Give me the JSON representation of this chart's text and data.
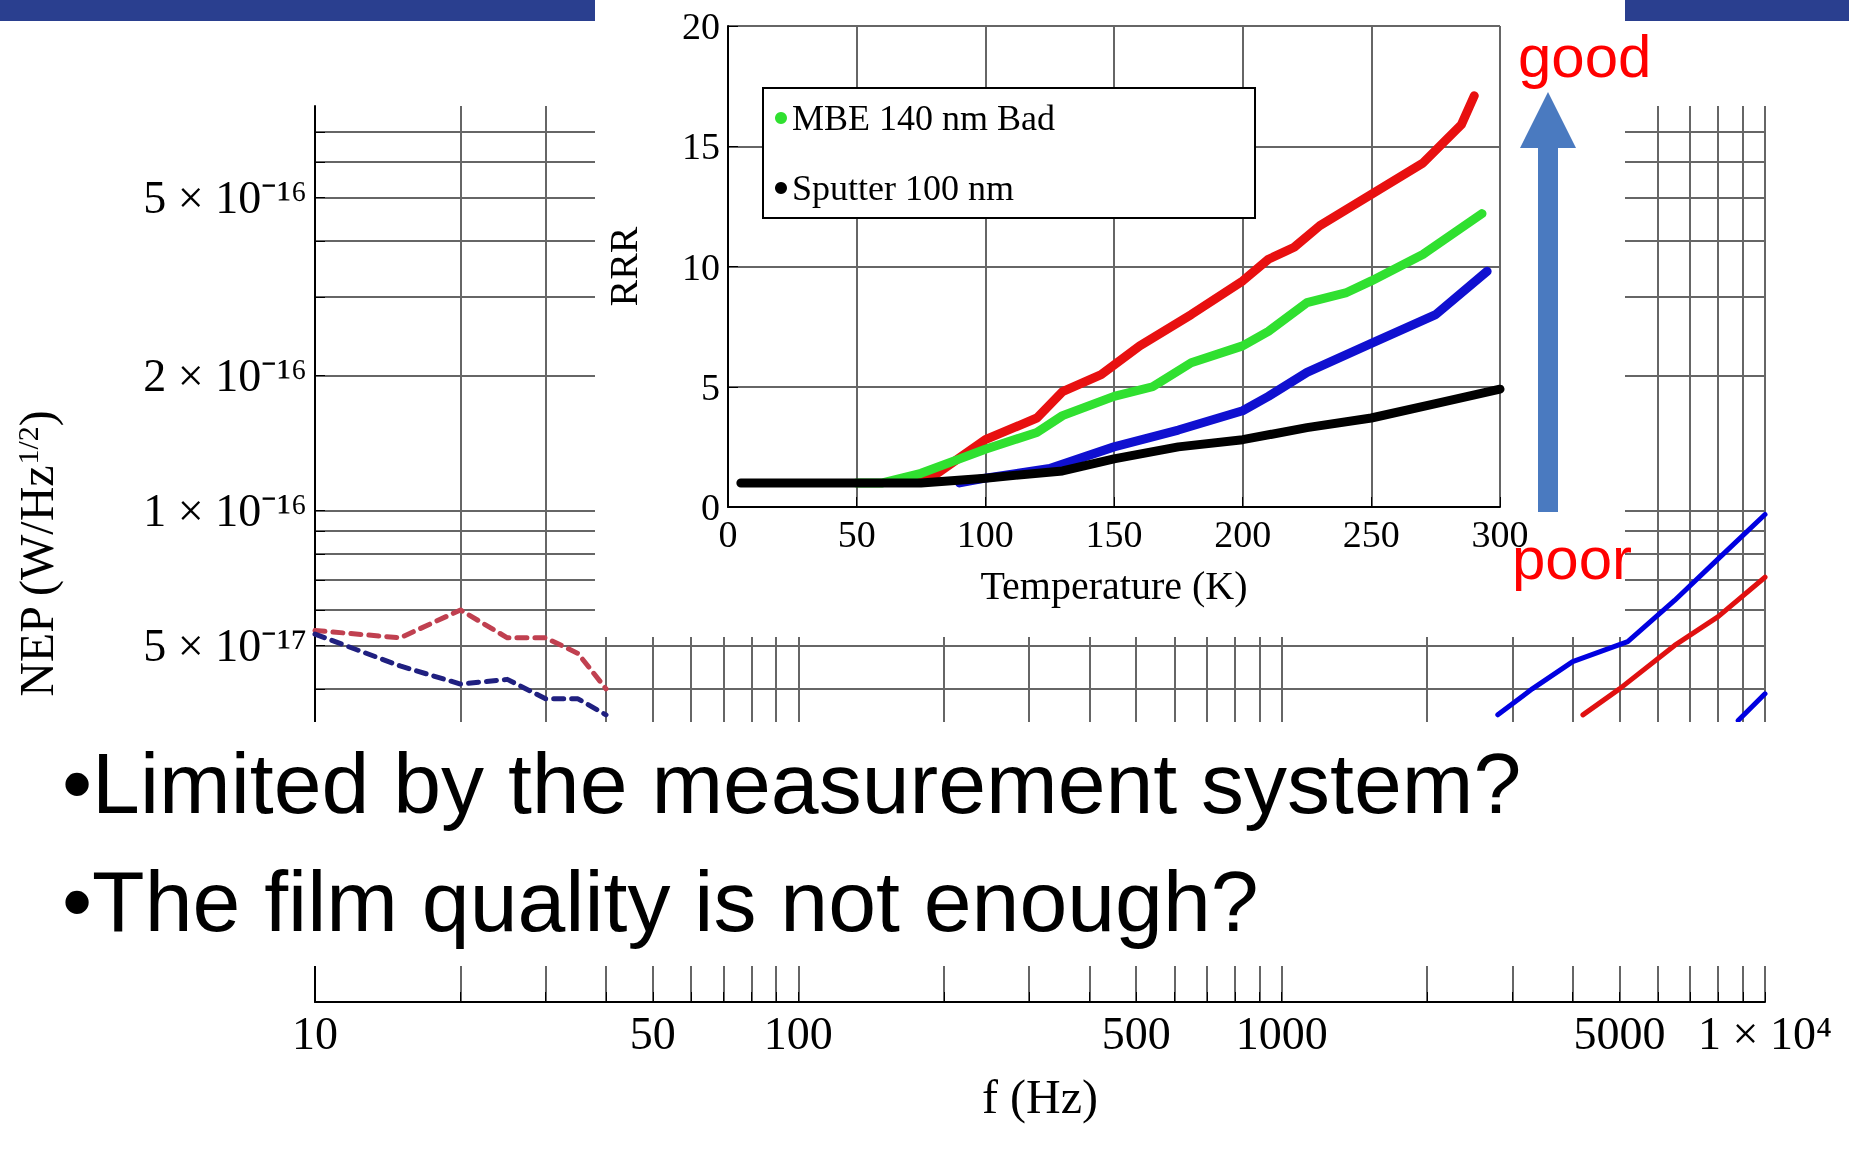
{
  "chart_data": [
    {
      "type": "line",
      "xlabel": "f (Hz)",
      "ylabel": "NEP (W/Hz$^{1/2}$)",
      "log": "xy",
      "grid": true,
      "xlim": [
        10,
        10000
      ],
      "xticks": [
        10,
        {
          "value": 20,
          "label": null
        },
        {
          "value": 30,
          "label": null
        },
        {
          "value": 40,
          "label": null
        },
        50,
        {
          "value": 60,
          "label": null
        },
        {
          "value": 70,
          "label": null
        },
        {
          "value": 80,
          "label": null
        },
        {
          "value": 90,
          "label": null
        },
        100,
        {
          "value": 200,
          "label": null
        },
        {
          "value": 300,
          "label": null
        },
        {
          "value": 400,
          "label": null
        },
        500,
        {
          "value": 600,
          "label": null
        },
        {
          "value": 700,
          "label": null
        },
        {
          "value": 800,
          "label": null
        },
        {
          "value": 900,
          "label": null
        },
        1000,
        {
          "value": 2000,
          "label": null
        },
        {
          "value": 3000,
          "label": null
        },
        {
          "value": 4000,
          "label": null
        },
        5000,
        {
          "value": 6000,
          "label": null
        },
        {
          "value": 7000,
          "label": null
        },
        {
          "value": 8000,
          "label": null
        },
        {
          "value": 9000,
          "label": null
        },
        {
          "value": 10000,
          "label": "1 × 10⁴"
        }
      ],
      "ylim": [
        8e-18,
        8e-16
      ],
      "yticks": [
        {
          "value": 1e-17,
          "label": null
        },
        {
          "value": 2e-17,
          "label": null
        },
        {
          "value": 3e-17,
          "label": null
        },
        {
          "value": 4e-17,
          "label": null
        },
        {
          "value": 5e-17,
          "label": "5 × 10⁻¹⁷"
        },
        {
          "value": 6e-17,
          "label": null
        },
        {
          "value": 7e-17,
          "label": null
        },
        {
          "value": 8e-17,
          "label": null
        },
        {
          "value": 9e-17,
          "label": null
        },
        {
          "value": 1e-16,
          "label": "1 × 10⁻¹⁶"
        },
        {
          "value": 2e-16,
          "label": "2 × 10⁻¹⁶"
        },
        {
          "value": 3e-16,
          "label": null
        },
        {
          "value": 4e-16,
          "label": null
        },
        {
          "value": 5e-16,
          "label": "5 × 10⁻¹⁶"
        },
        {
          "value": 6e-16,
          "label": null
        },
        {
          "value": 7e-16,
          "label": null
        }
      ],
      "series": [
        {
          "color": "#c04050",
          "line_style": "dashed",
          "x": [
            10,
            15,
            20,
            25,
            30,
            35,
            40
          ],
          "values": [
            5.4e-17,
            5.2e-17,
            6e-17,
            5.2e-17,
            5.2e-17,
            4.8e-17,
            4e-17
          ]
        },
        {
          "color": "#202080",
          "line_style": "dashed",
          "x": [
            10,
            15,
            20,
            25,
            30,
            35,
            40
          ],
          "values": [
            5.3e-17,
            4.5e-17,
            4.1e-17,
            4.2e-17,
            3.8e-17,
            3.8e-17,
            3.5e-17
          ]
        },
        {
          "color": "#0000e0",
          "line_style": "solid",
          "x": [
            2800,
            3300,
            4000,
            5200,
            6500,
            8000,
            10000
          ],
          "values": [
            3.5e-17,
            4e-17,
            4.6e-17,
            5.1e-17,
            6.3e-17,
            7.8e-17,
            9.8e-17
          ]
        },
        {
          "color": "#e01010",
          "line_style": "solid",
          "x": [
            4200,
            5000,
            6500,
            8000,
            10000
          ],
          "values": [
            3.5e-17,
            4e-17,
            5e-17,
            5.8e-17,
            7.1e-17
          ]
        },
        {
          "color": "#0000e0",
          "line_style": "solid",
          "x": [
            8800,
            10000
          ],
          "values": [
            3.4e-17,
            3.9e-17
          ]
        }
      ],
      "annotations": [
        "•Limited by the measurement system?",
        "•The film quality is not enough?"
      ]
    },
    {
      "type": "line",
      "xlabel": "Temperature (K)",
      "ylabel": "RRR",
      "grid": true,
      "legend": "top left",
      "xlim": [
        0,
        300
      ],
      "xticks": [
        0,
        50,
        100,
        150,
        200,
        250,
        300
      ],
      "ylim": [
        0,
        20
      ],
      "yticks": [
        0,
        5,
        10,
        15,
        20
      ],
      "series": [
        {
          "color": "#e81010",
          "x": [
            75,
            80,
            100,
            120,
            130,
            145,
            160,
            180,
            200,
            210,
            220,
            230,
            250,
            270,
            285,
            290
          ],
          "values": [
            1.1,
            1.3,
            2.8,
            3.7,
            4.8,
            5.5,
            6.7,
            8,
            9.4,
            10.3,
            10.8,
            11.7,
            13,
            14.3,
            15.9,
            17.1
          ]
        },
        {
          "name": "MBE 140 nm Bad",
          "color": "#30e030",
          "x": [
            50,
            60,
            75,
            90,
            100,
            120,
            130,
            150,
            165,
            180,
            200,
            210,
            225,
            240,
            250,
            270,
            293
          ],
          "values": [
            1,
            1,
            1.4,
            2,
            2.4,
            3.1,
            3.8,
            4.6,
            5,
            6,
            6.7,
            7.3,
            8.5,
            8.9,
            9.4,
            10.5,
            12.2
          ]
        },
        {
          "color": "#1010d0",
          "x": [
            90,
            100,
            125,
            150,
            175,
            200,
            210,
            225,
            250,
            275,
            295
          ],
          "values": [
            1,
            1.2,
            1.6,
            2.5,
            3.2,
            4,
            4.6,
            5.6,
            6.8,
            8,
            9.8
          ]
        },
        {
          "name": "Sputter 100 nm",
          "color": "#000000",
          "x": [
            5,
            75,
            100,
            130,
            150,
            175,
            200,
            225,
            250,
            275,
            300
          ],
          "values": [
            1,
            1,
            1.2,
            1.5,
            2,
            2.5,
            2.8,
            3.3,
            3.7,
            4.3,
            4.9
          ]
        }
      ],
      "annotations": [
        "good",
        "poor"
      ]
    }
  ]
}
